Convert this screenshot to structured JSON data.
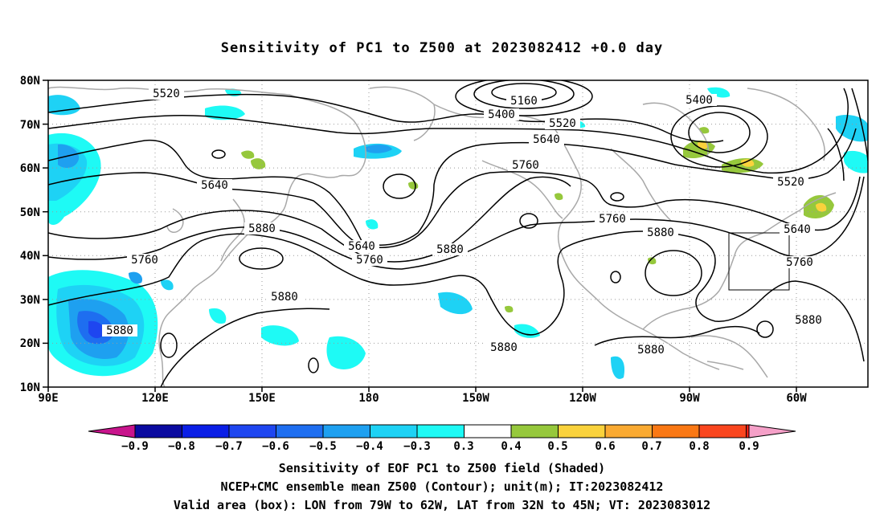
{
  "title": "Sensitivity of PC1 to Z500 at 2023082412 +0.0 day",
  "lat_labels": [
    "80N",
    "70N",
    "60N",
    "50N",
    "40N",
    "30N",
    "20N",
    "10N"
  ],
  "lon_labels": [
    "90E",
    "120E",
    "150E",
    "180",
    "150W",
    "120W",
    "90W",
    "60W"
  ],
  "contour_labels": [
    {
      "text": "5520"
    },
    {
      "text": "5160"
    },
    {
      "text": "5400"
    },
    {
      "text": "5520"
    },
    {
      "text": "5640"
    },
    {
      "text": "5400"
    },
    {
      "text": "5640"
    },
    {
      "text": "5760"
    },
    {
      "text": "5520"
    },
    {
      "text": "5880"
    },
    {
      "text": "5640"
    },
    {
      "text": "5760"
    },
    {
      "text": "5880"
    },
    {
      "text": "5760"
    },
    {
      "text": "5760"
    },
    {
      "text": "5880"
    },
    {
      "text": "5640"
    },
    {
      "text": "5760"
    },
    {
      "text": "5880"
    },
    {
      "text": "5880"
    },
    {
      "text": "5880"
    },
    {
      "text": "5880"
    },
    {
      "text": "5880"
    }
  ],
  "colorbar": {
    "colors": [
      "#c8148c",
      "#0a0aa0",
      "#0a1ee6",
      "#1e46f0",
      "#1e6ef0",
      "#1ea0f0",
      "#1ed2f5",
      "#1efaf5",
      "#ffffff",
      "#96c83c",
      "#fad23c",
      "#faaa32",
      "#fa7814",
      "#fa461e",
      "#f01e14",
      "#f5a0c8"
    ],
    "labels": [
      "−0.9",
      "−0.8",
      "−0.7",
      "−0.6",
      "−0.5",
      "−0.4",
      "−0.3",
      "0.3",
      "0.4",
      "0.5",
      "0.6",
      "0.7",
      "0.8",
      "0.9"
    ]
  },
  "captions": [
    "Sensitivity of EOF PC1 to Z500 field (Shaded)",
    "NCEP+CMC ensemble mean Z500 (Contour); unit(m); IT:2023082412",
    "Valid area (box): LON from 79W to 62W, LAT from 32N to 45N; VT: 2023083012"
  ]
}
